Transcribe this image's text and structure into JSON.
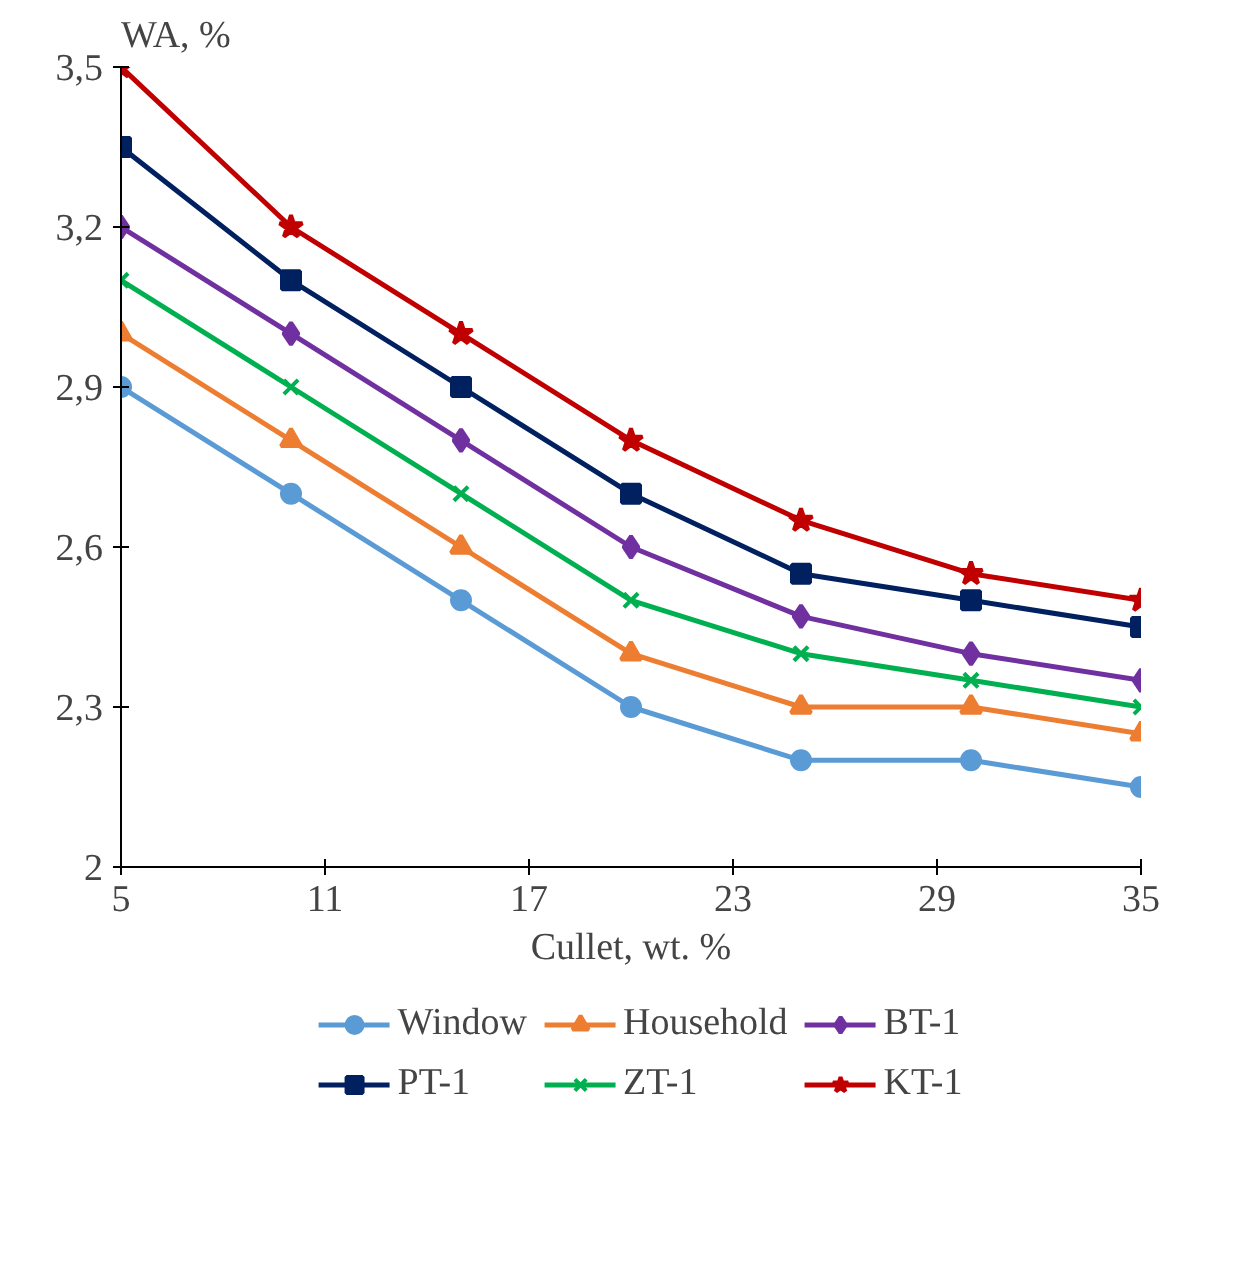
{
  "chart_data": {
    "type": "line",
    "ylabel": "WA, %",
    "xlabel": "Cullet, wt. %",
    "x": [
      5,
      10,
      15,
      20,
      25,
      30,
      35
    ],
    "xlim": [
      5,
      35
    ],
    "xticks": [
      5,
      11,
      17,
      23,
      29,
      35
    ],
    "ylim": [
      2,
      3.5
    ],
    "yticks": [
      2,
      {
        "value": 2.3,
        "label": "2,3"
      },
      {
        "value": 2.6,
        "label": "2,6"
      },
      {
        "value": 2.9,
        "label": "2,9"
      },
      {
        "value": 3.2,
        "label": "3,2"
      },
      {
        "value": 3.5,
        "label": "3,5"
      }
    ],
    "grid": false,
    "legend": "bottom",
    "series": [
      {
        "name": "Window",
        "color": "#5b9bd5",
        "marker": "circle",
        "values": [
          2.9,
          2.7,
          2.5,
          2.3,
          2.2,
          2.2,
          2.15
        ]
      },
      {
        "name": "Household",
        "color": "#ed7d31",
        "marker": "triangle",
        "values": [
          3.0,
          2.8,
          2.6,
          2.4,
          2.3,
          2.3,
          2.25
        ]
      },
      {
        "name": "BT-1",
        "color": "#7030a0",
        "marker": "diamond",
        "values": [
          3.2,
          3.0,
          2.8,
          2.6,
          2.47,
          2.4,
          2.35
        ]
      },
      {
        "name": "PT-1",
        "color": "#002060",
        "marker": "square",
        "values": [
          3.35,
          3.1,
          2.9,
          2.7,
          2.55,
          2.5,
          2.45
        ]
      },
      {
        "name": "ZT-1",
        "color": "#00b050",
        "marker": "cross",
        "values": [
          3.1,
          2.9,
          2.7,
          2.5,
          2.4,
          2.35,
          2.3
        ]
      },
      {
        "name": "KT-1",
        "color": "#c00000",
        "marker": "star",
        "values": [
          3.5,
          3.2,
          3.0,
          2.8,
          2.65,
          2.55,
          2.5
        ]
      }
    ]
  }
}
